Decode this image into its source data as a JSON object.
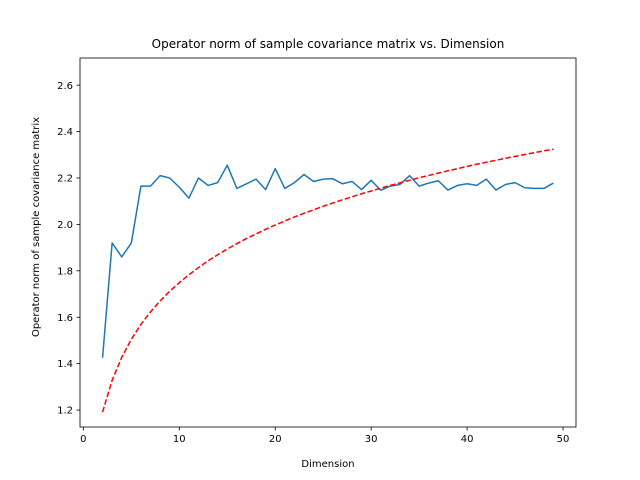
{
  "chart_data": {
    "type": "line",
    "title": "Operator norm of sample covariance matrix vs. Dimension",
    "xlabel": "Dimension",
    "ylabel": "Operator norm of sample covariance matrix",
    "xlim": [
      -0.35,
      51.35
    ],
    "ylim": [
      1.127,
      2.717
    ],
    "xticks": [
      0,
      10,
      20,
      30,
      40,
      50
    ],
    "yticks": [
      1.2,
      1.4,
      1.6,
      1.8,
      2.0,
      2.2,
      2.4,
      2.6
    ],
    "grid": false,
    "legend": "none",
    "series": [
      {
        "style": "solid",
        "color": "#1f77b4",
        "x": [
          2,
          3,
          4,
          5,
          6,
          7,
          8,
          9,
          10,
          11,
          12,
          13,
          14,
          15,
          16,
          17,
          18,
          19,
          20,
          21,
          22,
          23,
          24,
          25,
          26,
          27,
          28,
          29,
          30,
          31,
          32,
          33,
          34,
          35,
          36,
          37,
          38,
          39,
          40,
          41,
          42,
          43,
          44,
          45,
          46,
          47,
          48,
          49
        ],
        "y": [
          1.425,
          1.92,
          1.86,
          1.92,
          2.165,
          2.165,
          2.21,
          2.2,
          2.16,
          2.113,
          2.2,
          2.168,
          2.18,
          2.255,
          2.155,
          2.175,
          2.195,
          2.15,
          2.24,
          2.155,
          2.18,
          2.215,
          2.185,
          2.195,
          2.197,
          2.175,
          2.185,
          2.15,
          2.19,
          2.147,
          2.165,
          2.172,
          2.21,
          2.165,
          2.178,
          2.188,
          2.148,
          2.168,
          2.175,
          2.168,
          2.195,
          2.148,
          2.172,
          2.18,
          2.158,
          2.155,
          2.155,
          2.178
        ]
      },
      {
        "style": "dashed",
        "color": "#ff0000",
        "x": [
          2,
          3,
          4,
          5,
          6,
          7,
          8,
          9,
          10,
          11,
          12,
          13,
          14,
          15,
          16,
          17,
          18,
          19,
          20,
          21,
          22,
          23,
          24,
          25,
          26,
          27,
          28,
          29,
          30,
          31,
          32,
          33,
          34,
          35,
          36,
          37,
          38,
          39,
          40,
          41,
          42,
          43,
          44,
          45,
          46,
          47,
          48,
          49
        ],
        "y": [
          1.191,
          1.328,
          1.427,
          1.505,
          1.569,
          1.623,
          1.67,
          1.712,
          1.749,
          1.783,
          1.814,
          1.843,
          1.869,
          1.894,
          1.917,
          1.939,
          1.959,
          1.979,
          1.997,
          2.015,
          2.032,
          2.048,
          2.063,
          2.078,
          2.092,
          2.106,
          2.119,
          2.132,
          2.144,
          2.156,
          2.168,
          2.179,
          2.19,
          2.201,
          2.211,
          2.221,
          2.231,
          2.24,
          2.25,
          2.259,
          2.268,
          2.276,
          2.285,
          2.293,
          2.301,
          2.309,
          2.317,
          2.324
        ]
      }
    ]
  }
}
